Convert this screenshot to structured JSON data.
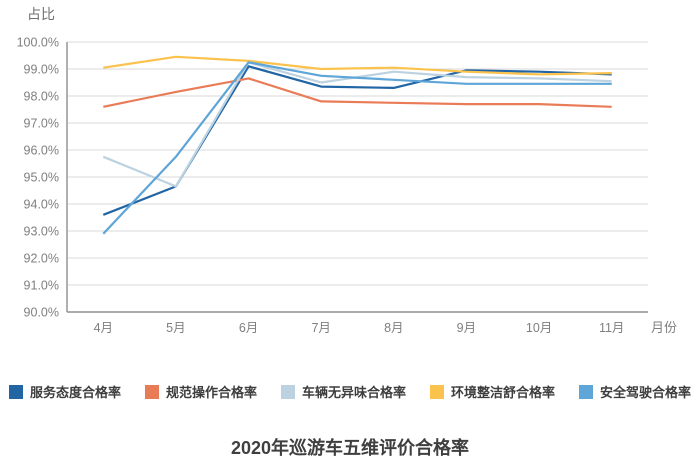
{
  "chart_data": {
    "type": "line",
    "title": "2020年巡游车五维评价合格率",
    "y_axis_title": "占比",
    "x_axis_title": "月份",
    "categories": [
      "4月",
      "5月",
      "6月",
      "7月",
      "8月",
      "9月",
      "10月",
      "11月"
    ],
    "series": [
      {
        "name": "服务态度合格率",
        "color": "#2165a5",
        "values": [
          93.6,
          94.65,
          99.1,
          98.35,
          98.3,
          98.95,
          98.9,
          98.8
        ]
      },
      {
        "name": "规范操作合格率",
        "color": "#e97c57",
        "values": [
          97.6,
          98.15,
          98.65,
          97.8,
          97.75,
          97.7,
          97.7,
          97.6
        ]
      },
      {
        "name": "车辆无异味合格率",
        "color": "#bdd2e0",
        "values": [
          95.75,
          94.65,
          99.25,
          98.5,
          98.9,
          98.7,
          98.65,
          98.55
        ]
      },
      {
        "name": "环境整洁舒合格率",
        "color": "#fbc34d",
        "values": [
          99.05,
          99.45,
          99.3,
          99.0,
          99.05,
          98.9,
          98.8,
          98.85
        ]
      },
      {
        "name": "安全驾驶合格率",
        "color": "#5ea5d8",
        "values": [
          92.9,
          95.75,
          99.25,
          98.75,
          98.6,
          98.45,
          98.45,
          98.45
        ]
      }
    ],
    "ylim": [
      90,
      100
    ],
    "y_tick_step": 1,
    "y_tick_labels": [
      "100.0%",
      "99.0%",
      "98.0%",
      "97.0%",
      "96.0%",
      "95.0%",
      "94.0%",
      "93.0%",
      "92.0%",
      "91.0%",
      "90.0%"
    ],
    "grid": "horizontal",
    "legend_position": "bottom"
  },
  "style_colors": {
    "gridline": "#d9d9d9",
    "axis_line": "#8f8f8f",
    "tick_text": "#7f7f7f",
    "title_text": "#3f3f3f",
    "legend_text": "#3d3d3d"
  }
}
